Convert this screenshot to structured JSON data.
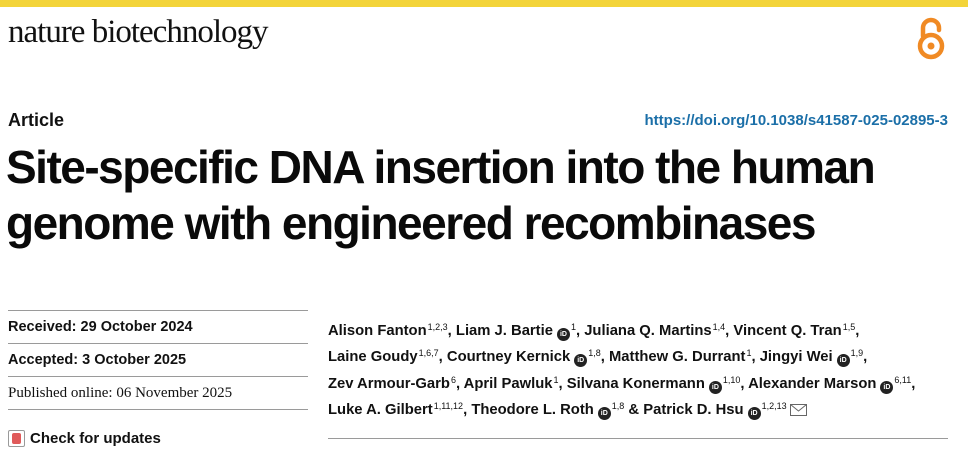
{
  "header": {
    "journal_name": "nature biotechnology",
    "open_access_icon": "open-access-lock-icon",
    "accent_color": "#f3d43a",
    "open_access_color": "#f08a24"
  },
  "article": {
    "type": "Article",
    "doi": "https://doi.org/10.1038/s41587-025-02895-3",
    "doi_color": "#1b6fa8",
    "title": "Site-specific DNA insertion into the human genome with engineered recombinases"
  },
  "dates": {
    "received": "Received: 29 October 2024",
    "accepted": "Accepted: 3 October 2025",
    "published": "Published online: 06 November 2025",
    "check_updates": "Check for updates"
  },
  "authors": [
    {
      "name": "Alison Fanton",
      "sup": "1,2,3",
      "orcid": false,
      "sep": ", "
    },
    {
      "name": "Liam J. Bartie",
      "sup": "1",
      "orcid": true,
      "sep": ", "
    },
    {
      "name": "Juliana Q. Martins",
      "sup": "1,4",
      "orcid": false,
      "sep": ", "
    },
    {
      "name": "Vincent Q. Tran",
      "sup": "1,5",
      "orcid": false,
      "sep": ", "
    },
    {
      "name": "Laine Goudy",
      "sup": "1,6,7",
      "orcid": false,
      "sep": ", "
    },
    {
      "name": "Courtney Kernick",
      "sup": "1,8",
      "orcid": true,
      "sep": ", "
    },
    {
      "name": "Matthew G. Durrant",
      "sup": "1",
      "orcid": false,
      "sep": ", "
    },
    {
      "name": "Jingyi Wei",
      "sup": "1,9",
      "orcid": true,
      "sep": ", "
    },
    {
      "name": "Zev Armour-Garb",
      "sup": "6",
      "orcid": false,
      "sep": ", "
    },
    {
      "name": "April Pawluk",
      "sup": "1",
      "orcid": false,
      "sep": ", "
    },
    {
      "name": "Silvana Konermann",
      "sup": "1,10",
      "orcid": true,
      "sep": ", "
    },
    {
      "name": "Alexander Marson",
      "sup": "6,11",
      "orcid": true,
      "sep": ", "
    },
    {
      "name": "Luke A. Gilbert",
      "sup": "1,11,12",
      "orcid": false,
      "sep": ", "
    },
    {
      "name": "Theodore L. Roth",
      "sup": "1,8",
      "orcid": true,
      "sep": " & "
    },
    {
      "name": "Patrick D. Hsu",
      "sup": "1,2,13",
      "orcid": true,
      "sep": "",
      "mail": true
    }
  ]
}
